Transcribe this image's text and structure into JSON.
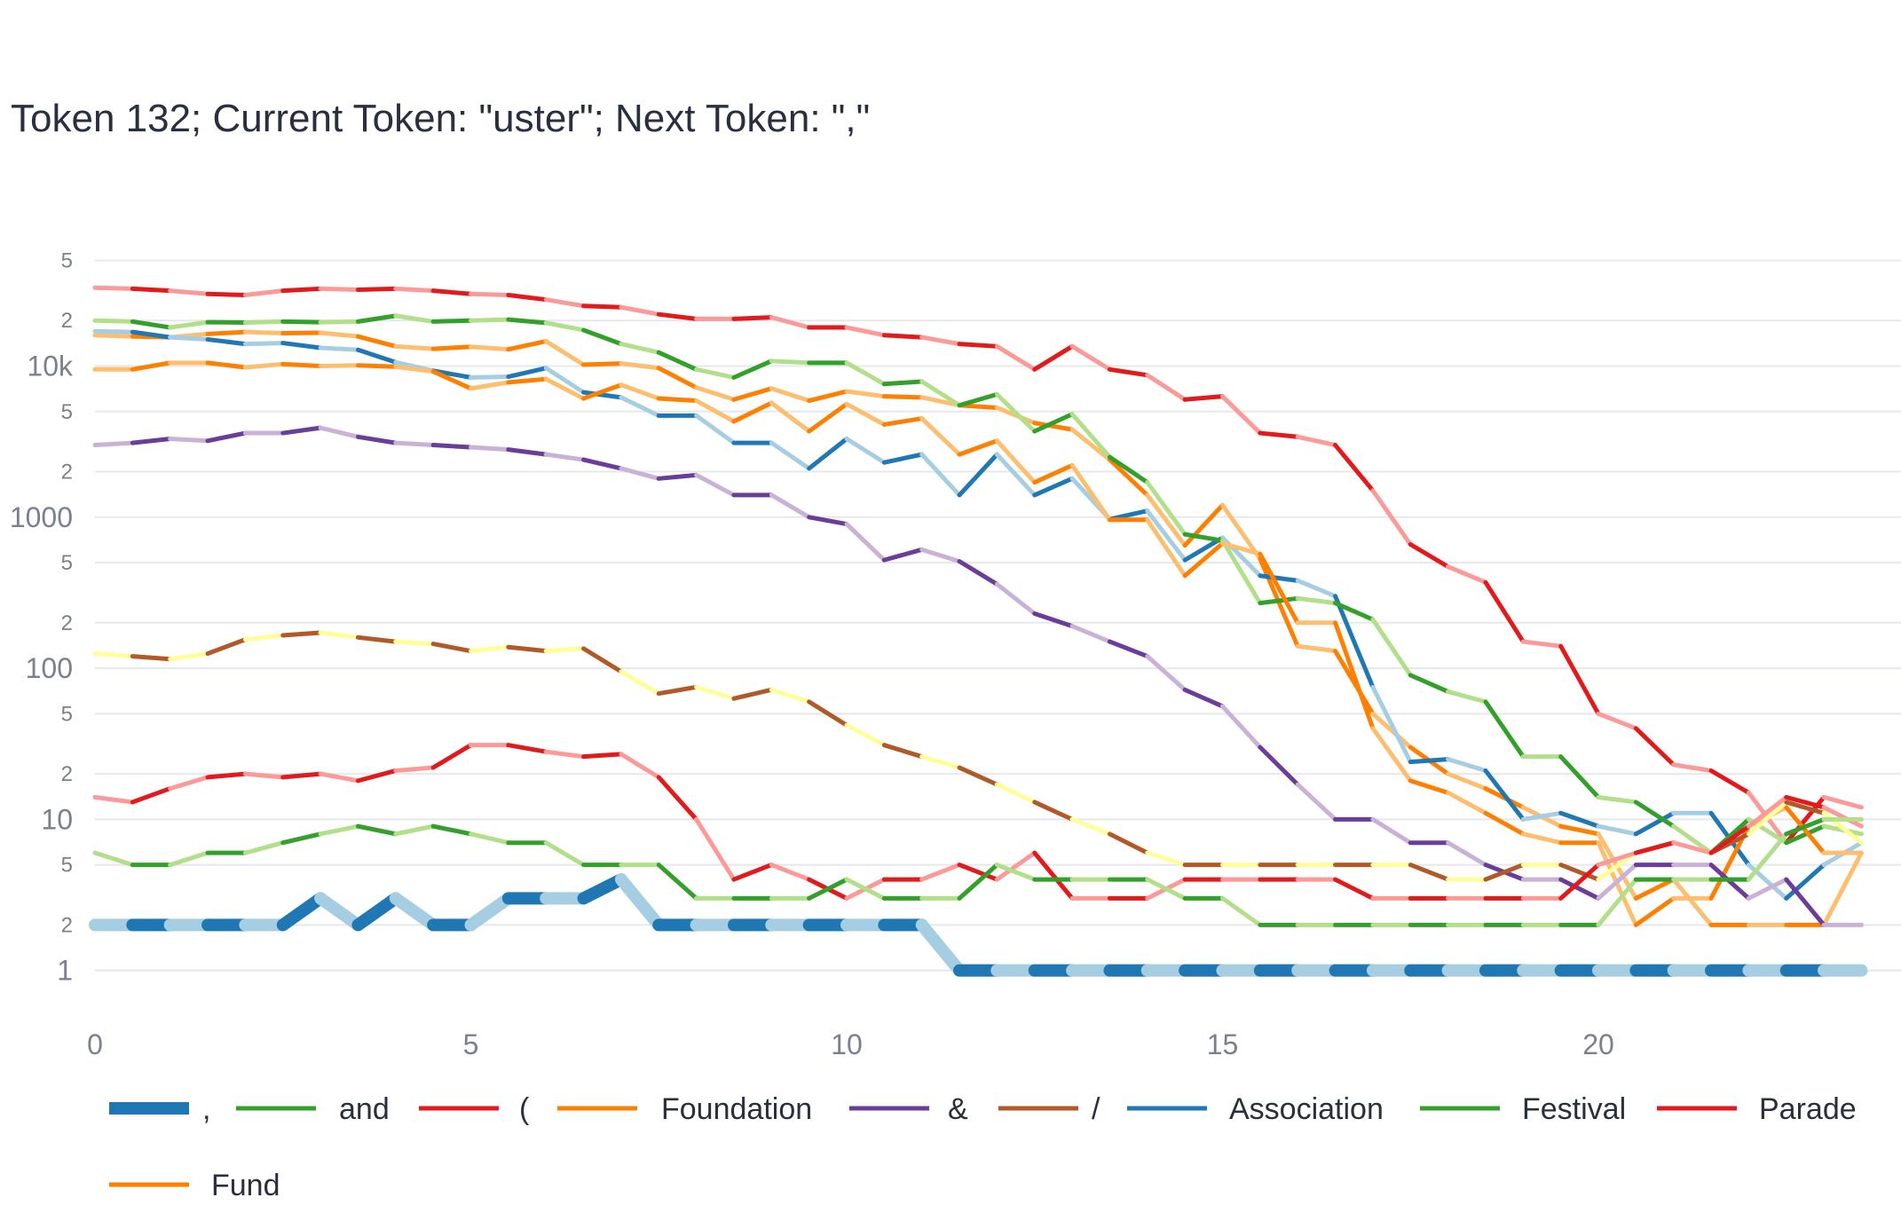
{
  "chart_data": {
    "type": "line",
    "title": "Token 132; Current Token: \"uster\"; Next Token: \",\"",
    "xlabel": "",
    "ylabel": "",
    "y_scale": "log",
    "grid": true,
    "legend_position": "bottom",
    "x_range": [
      0,
      23.5
    ],
    "y_range": [
      0.7,
      60000
    ],
    "x_ticks": [
      0,
      5,
      10,
      15,
      20
    ],
    "x_tick_labels": [
      "0",
      "5",
      "10",
      "15",
      "20"
    ],
    "y_major_ticks": [
      1,
      10,
      100,
      1000,
      10000
    ],
    "y_major_tick_labels": [
      "1",
      "10",
      "100",
      "1000",
      "10k"
    ],
    "y_minor_ticks": [
      2,
      5,
      20,
      50,
      200,
      500,
      2000,
      5000,
      20000,
      50000
    ],
    "y_minor_tick_labels": [
      "2",
      "5",
      "2",
      "5",
      "2",
      "5",
      "2",
      "5",
      "2",
      "5"
    ],
    "x": [
      0,
      0.5,
      1,
      1.5,
      2,
      2.5,
      3,
      3.5,
      4,
      4.5,
      5,
      5.5,
      6,
      6.5,
      7,
      7.5,
      8,
      8.5,
      9,
      9.5,
      10,
      10.5,
      11,
      11.5,
      12,
      12.5,
      13,
      13.5,
      14,
      14.5,
      15,
      15.5,
      16,
      16.5,
      17,
      17.5,
      18,
      18.5,
      19,
      19.5,
      20,
      20.5,
      21,
      21.5,
      22,
      22.5,
      23,
      23.5
    ],
    "series": [
      {
        "name": ",",
        "color": "#1f78b4",
        "highlight": "#a6cee3",
        "width": 14,
        "values": [
          2,
          2,
          2,
          2,
          2,
          2,
          3,
          2,
          3,
          2,
          2,
          3,
          3,
          3,
          4,
          2,
          2,
          2,
          2,
          2,
          2,
          2,
          2,
          1,
          1,
          1,
          1,
          1,
          1,
          1,
          1,
          1,
          1,
          1,
          1,
          1,
          1,
          1,
          1,
          1,
          1,
          1,
          1,
          1,
          1,
          1,
          1,
          1
        ]
      },
      {
        "name": "and",
        "color": "#33a02c",
        "highlight": "#b2df8a",
        "width": 5,
        "values": [
          6,
          5,
          5,
          6,
          6,
          7,
          8,
          9,
          8,
          9,
          8,
          7,
          7,
          5,
          5,
          5,
          3,
          3,
          3,
          3,
          4,
          3,
          3,
          3,
          5,
          4,
          4,
          4,
          4,
          3,
          3,
          2,
          2,
          2,
          2,
          2,
          2,
          2,
          2,
          2,
          2,
          4,
          4,
          4,
          4,
          8,
          10,
          10
        ]
      },
      {
        "name": "(",
        "color": "#e31a1c",
        "highlight": "#fb9a99",
        "width": 5,
        "values": [
          14,
          13,
          16,
          19,
          20,
          19,
          20,
          18,
          21,
          22,
          31,
          31,
          28,
          26,
          27,
          19,
          10,
          4,
          5,
          4,
          3,
          4,
          4,
          5,
          4,
          6,
          3,
          3,
          3,
          4,
          4,
          4,
          4,
          4,
          3,
          3,
          3,
          3,
          3,
          3,
          5,
          6,
          7,
          6,
          9,
          14,
          12,
          9
        ]
      },
      {
        "name": "Foundation",
        "color": "#ff7f00",
        "highlight": "#fdbf6f",
        "width": 5,
        "values": [
          9500,
          9500,
          10500,
          10500,
          9800,
          10300,
          10000,
          10100,
          9900,
          9200,
          7100,
          7800,
          8200,
          6100,
          7500,
          6100,
          5900,
          4300,
          5700,
          3700,
          5600,
          4100,
          4500,
          2600,
          3200,
          1700,
          2200,
          960,
          960,
          410,
          670,
          570,
          200,
          200,
          40,
          18,
          15,
          11,
          8,
          7,
          7,
          2,
          3,
          3,
          9,
          12,
          6,
          6
        ]
      },
      {
        "name": "&",
        "color": "#6a3d9a",
        "highlight": "#cab2d6",
        "width": 5,
        "values": [
          3000,
          3100,
          3300,
          3200,
          3600,
          3600,
          3900,
          3400,
          3100,
          3000,
          2900,
          2800,
          2600,
          2400,
          2100,
          1800,
          1900,
          1400,
          1400,
          1000,
          900,
          520,
          610,
          510,
          360,
          230,
          190,
          150,
          120,
          72,
          56,
          30,
          17,
          10,
          10,
          7,
          7,
          5,
          4,
          4,
          3,
          5,
          5,
          5,
          3,
          4,
          2,
          2
        ]
      },
      {
        "name": "/",
        "color": "#b15928",
        "highlight": "#ffff99",
        "width": 5,
        "values": [
          125,
          120,
          115,
          125,
          155,
          165,
          172,
          160,
          150,
          145,
          130,
          138,
          130,
          135,
          95,
          68,
          75,
          63,
          72,
          60,
          42,
          31,
          26,
          22,
          17,
          13,
          10,
          8,
          6,
          5,
          5,
          5,
          5,
          5,
          5,
          5,
          4,
          4,
          5,
          5,
          4,
          6,
          7,
          6,
          8,
          13,
          11,
          7
        ]
      },
      {
        "name": "Association",
        "color": "#1f78b4",
        "highlight": "#a6cee3",
        "width": 5,
        "values": [
          17000,
          16800,
          15500,
          15000,
          14000,
          14200,
          13200,
          12800,
          10600,
          9300,
          8400,
          8500,
          9700,
          6700,
          6200,
          4700,
          4700,
          3100,
          3100,
          2100,
          3300,
          2300,
          2600,
          1400,
          2600,
          1400,
          1800,
          970,
          1100,
          520,
          730,
          410,
          380,
          300,
          75,
          24,
          25,
          21,
          10,
          11,
          9,
          8,
          11,
          11,
          5,
          3,
          5,
          7
        ]
      },
      {
        "name": "Festival",
        "color": "#33a02c",
        "highlight": "#b2df8a",
        "width": 5,
        "values": [
          20000,
          19700,
          18000,
          19500,
          19400,
          19700,
          19500,
          19700,
          21500,
          19700,
          20000,
          20300,
          19300,
          17300,
          14000,
          12300,
          9500,
          8400,
          10800,
          10500,
          10500,
          7600,
          7900,
          5500,
          6500,
          3700,
          4800,
          2500,
          1700,
          770,
          700,
          270,
          290,
          270,
          210,
          90,
          70,
          60,
          26,
          26,
          14,
          13,
          9,
          6,
          10,
          7,
          9,
          8
        ]
      },
      {
        "name": "Parade",
        "color": "#e31a1c",
        "highlight": "#fb9a99",
        "width": 5,
        "values": [
          33000,
          32500,
          31500,
          30000,
          29500,
          31500,
          32500,
          32000,
          32500,
          31500,
          30000,
          29500,
          27500,
          25000,
          24500,
          22000,
          20500,
          20500,
          21000,
          18000,
          18000,
          16000,
          15500,
          14000,
          13500,
          9500,
          13500,
          9500,
          8700,
          6000,
          6300,
          3600,
          3400,
          3000,
          1500,
          660,
          470,
          370,
          150,
          140,
          50,
          40,
          23,
          21,
          15,
          7,
          14,
          12
        ]
      },
      {
        "name": "Fund",
        "color": "#ff7f00",
        "highlight": "#fdbf6f",
        "width": 5,
        "values": [
          16000,
          15700,
          15500,
          16300,
          16800,
          16500,
          16600,
          15700,
          13500,
          13000,
          13400,
          12900,
          14600,
          10200,
          10400,
          9700,
          7200,
          6000,
          7100,
          5900,
          6800,
          6300,
          6200,
          5500,
          5300,
          4200,
          3800,
          2400,
          1400,
          650,
          1200,
          530,
          140,
          130,
          50,
          30,
          20,
          16,
          12,
          9,
          8,
          3,
          4,
          2,
          2,
          2,
          2,
          6
        ]
      }
    ]
  }
}
